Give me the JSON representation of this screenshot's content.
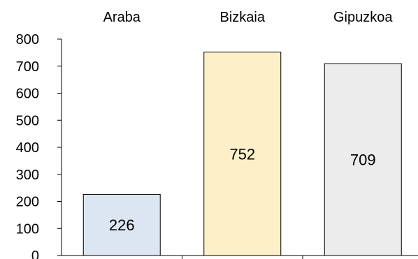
{
  "chart_data": {
    "type": "bar",
    "categories": [
      "Araba",
      "Bizkaia",
      "Gipuzkoa"
    ],
    "values": [
      226,
      752,
      709
    ],
    "data_labels": [
      "226",
      "752",
      "709"
    ],
    "bar_colors": [
      "#dce6f2",
      "#fdf0c8",
      "#ececec"
    ],
    "bar_edge_color": "#000000",
    "yticks": [
      0,
      100,
      200,
      300,
      400,
      500,
      600,
      700,
      800
    ],
    "ytick_labels": [
      "0",
      "100",
      "200",
      "300",
      "400",
      "500",
      "600",
      "700",
      "800"
    ],
    "ylim": [
      0,
      800
    ],
    "category_labels_position": "top",
    "grid": false,
    "legend": "none"
  }
}
